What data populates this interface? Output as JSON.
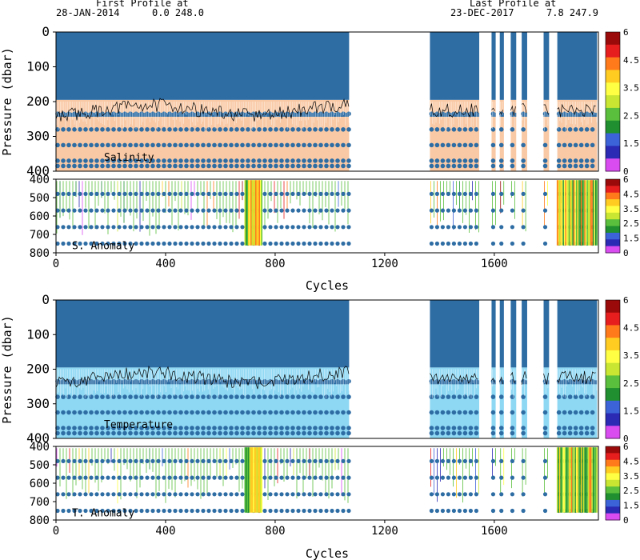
{
  "header": {
    "first_label": "First Profile at",
    "first_date": "28-JAN-2014",
    "first_vals": "0.0 248.0",
    "last_label": "Last Profile at",
    "last_date": "23-DEC-2017",
    "last_vals": "7.8 247.9"
  },
  "colors": {
    "profile_blue": "#2e6da4",
    "salinity_band": "#f9c9a5",
    "temperature_band": "#8fd8f4",
    "trace": "#000000"
  },
  "colorbar": {
    "colors": [
      "#9a0a0a",
      "#e61e1e",
      "#ff7a1a",
      "#ffcc22",
      "#ffff44",
      "#c8e632",
      "#5abf3c",
      "#1f8f2f",
      "#3c64d8",
      "#2a2ab4",
      "#d84cf0"
    ],
    "ticks": [
      "6",
      "4.5",
      "3.5",
      "2.5",
      "1.5",
      "0"
    ]
  },
  "chart_data": [
    {
      "type": "heatmap",
      "name": "Salinity",
      "ylabel": "Pressure (dbar)",
      "xlim": [
        0,
        1980
      ],
      "ylim": [
        400,
        0
      ],
      "yticks": [
        "0",
        "100",
        "200",
        "300",
        "400"
      ],
      "xticks": [
        "0",
        "400",
        "800",
        "1200",
        "1600"
      ],
      "cycle_segments": [
        [
          0,
          1070
        ],
        [
          1365,
          1545
        ],
        [
          1590,
          1605
        ],
        [
          1620,
          1635
        ],
        [
          1660,
          1680
        ],
        [
          1700,
          1720
        ],
        [
          1780,
          1800
        ],
        [
          1830,
          1975
        ]
      ],
      "level_rows": [
        235,
        280,
        325,
        370,
        385
      ],
      "colorbar_ticks": [
        "6",
        "4.5",
        "3.5",
        "2.5",
        "1.5",
        "0"
      ]
    },
    {
      "type": "heatmap",
      "name": "S. Anomaly",
      "xlabel": "Cycles",
      "ylim": [
        800,
        400
      ],
      "yticks": [
        "400",
        "500",
        "600",
        "700",
        "800"
      ],
      "xticks": [
        "0",
        "400",
        "800",
        "1200",
        "1600"
      ],
      "level_rows": [
        480,
        570,
        660,
        750
      ],
      "colorbar_ticks": [
        "6",
        "4.5",
        "3.5",
        "2.5",
        "1.5",
        "0"
      ]
    },
    {
      "type": "heatmap",
      "name": "Temperature",
      "ylabel": "Pressure (dbar)",
      "xlim": [
        0,
        1980
      ],
      "ylim": [
        400,
        0
      ],
      "yticks": [
        "0",
        "100",
        "200",
        "300",
        "400"
      ],
      "xticks": [
        "0",
        "400",
        "800",
        "1200",
        "1600"
      ],
      "level_rows": [
        235,
        280,
        325,
        370,
        385
      ],
      "colorbar_ticks": [
        "6",
        "4.5",
        "3.5",
        "2.5",
        "1.5",
        "0"
      ]
    },
    {
      "type": "heatmap",
      "name": "T. Anomaly",
      "xlabel": "Cycles",
      "ylim": [
        800,
        400
      ],
      "yticks": [
        "400",
        "500",
        "600",
        "700",
        "800"
      ],
      "xticks": [
        "0",
        "400",
        "800",
        "1200",
        "1600"
      ],
      "level_rows": [
        480,
        570,
        660,
        750
      ],
      "colorbar_ticks": [
        "6",
        "4.5",
        "3.5",
        "2.5",
        "1.5",
        "0"
      ]
    }
  ]
}
